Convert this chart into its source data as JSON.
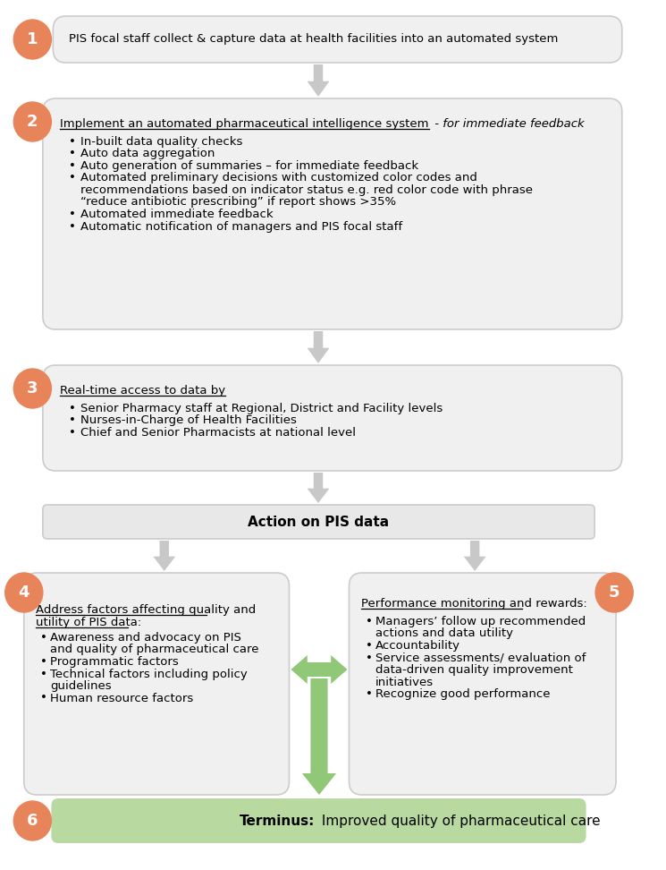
{
  "bg_color": "#ffffff",
  "circle_color": "#E8845A",
  "box_fill": "#f0f0f0",
  "box_edge": "#cccccc",
  "arrow_color": "#c8c8c8",
  "green_arrow_color": "#90C878",
  "green_box_fill": "#b8d9a0",
  "green_box_edge": "#90b878",
  "action_box_fill": "#e8e8e8",
  "action_box_edge": "#cccccc",
  "box1_text": "PIS focal staff collect & capture data at health facilities into an automated system",
  "box2_title": "Implement an automated pharmaceutical intelligence system",
  "box2_title_suffix": " - for immediate feedback",
  "box2_bullets": [
    "In-built data quality checks",
    "Auto data aggregation",
    "Auto generation of summaries – for immediate feedback",
    "Automated preliminary decisions with customized color codes and\nrecommendations based on indicator status e.g. red color code with phrase\n“reduce antibiotic prescribing” if report shows >35%",
    "Automated immediate feedback",
    "Automatic notification of managers and PIS focal staff"
  ],
  "box3_title": "Real-time access to data by",
  "box3_bullets": [
    "Senior Pharmacy staff at Regional, District and Facility levels",
    "Nurses-in-Charge of Health Facilities",
    "Chief and Senior Pharmacists at national level"
  ],
  "action_text": "Action on PIS data",
  "box4_title_lines": [
    "Address factors affecting quality and",
    "utility of PIS data:"
  ],
  "box4_bullets": [
    "Awareness and advocacy on PIS\nand quality of pharmaceutical care",
    "Programmatic factors",
    "Technical factors including policy\nguidelines",
    "Human resource factors"
  ],
  "box5_title": "Performance monitoring and rewards:",
  "box5_bullets": [
    "Managers’ follow up recommended\nactions and data utility",
    "Accountability",
    "Service assessments/ evaluation of\ndata-driven quality improvement\ninitiatives",
    "Recognize good performance"
  ],
  "box6_text_bold": "Terminus:",
  "box6_text_normal": " Improved quality of pharmaceutical care"
}
